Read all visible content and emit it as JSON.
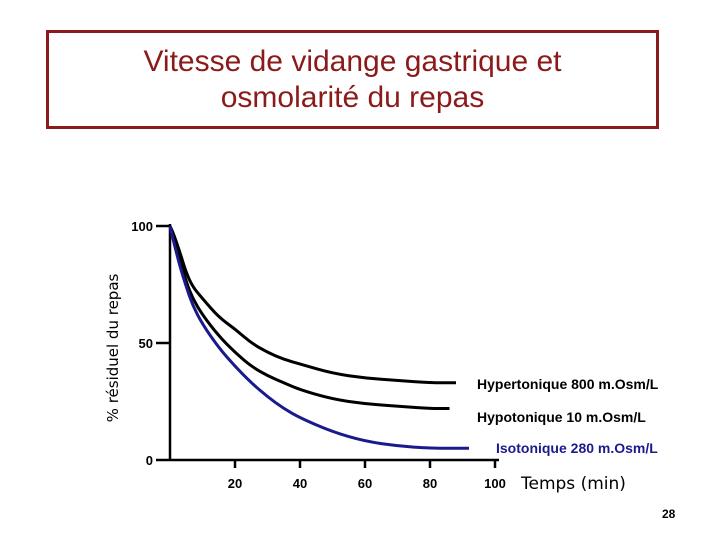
{
  "slide": {
    "title": "Vitesse de vidange gastrique et\nosmolarité du repas",
    "page_number": "28"
  },
  "chart_data": {
    "type": "line",
    "xlabel": "Temps (min)",
    "ylabel": "% résiduel du repas",
    "xlim": [
      0,
      100
    ],
    "ylim": [
      0,
      100
    ],
    "x_ticks": [
      "20",
      "40",
      "60",
      "80",
      "100"
    ],
    "y_ticks": [
      "0",
      "50",
      "100"
    ],
    "grid": false,
    "colors": {
      "hypertonique": "#000000",
      "hypotonique": "#000000",
      "isotonique": "#1a1a8c"
    },
    "series": [
      {
        "name": "Hypertonique 800 m.Osm/L",
        "x": [
          0,
          1,
          3,
          5,
          7,
          10,
          15,
          20,
          25,
          30,
          35,
          40,
          50,
          60,
          70,
          80,
          88
        ],
        "y": [
          100,
          97,
          89,
          80,
          74,
          69,
          61,
          56,
          50,
          46,
          43,
          41,
          37,
          35,
          34,
          33,
          33
        ]
      },
      {
        "name": "Hypotonique 10 m.Osm/L",
        "x": [
          0,
          1,
          3,
          5,
          7,
          10,
          15,
          20,
          25,
          30,
          35,
          40,
          50,
          60,
          70,
          80,
          86
        ],
        "y": [
          100,
          96,
          86,
          76,
          69,
          62,
          53,
          46,
          40,
          36,
          33,
          30,
          26,
          24,
          23,
          22,
          22
        ]
      },
      {
        "name": "Isotonique 280 m.Osm/L",
        "x": [
          0,
          1,
          3,
          5,
          7,
          10,
          15,
          20,
          25,
          30,
          35,
          40,
          50,
          60,
          70,
          80,
          92
        ],
        "y": [
          100,
          94,
          83,
          74,
          66,
          58,
          48,
          40,
          33,
          27,
          22,
          18,
          12,
          8,
          6,
          5,
          5
        ]
      }
    ]
  }
}
